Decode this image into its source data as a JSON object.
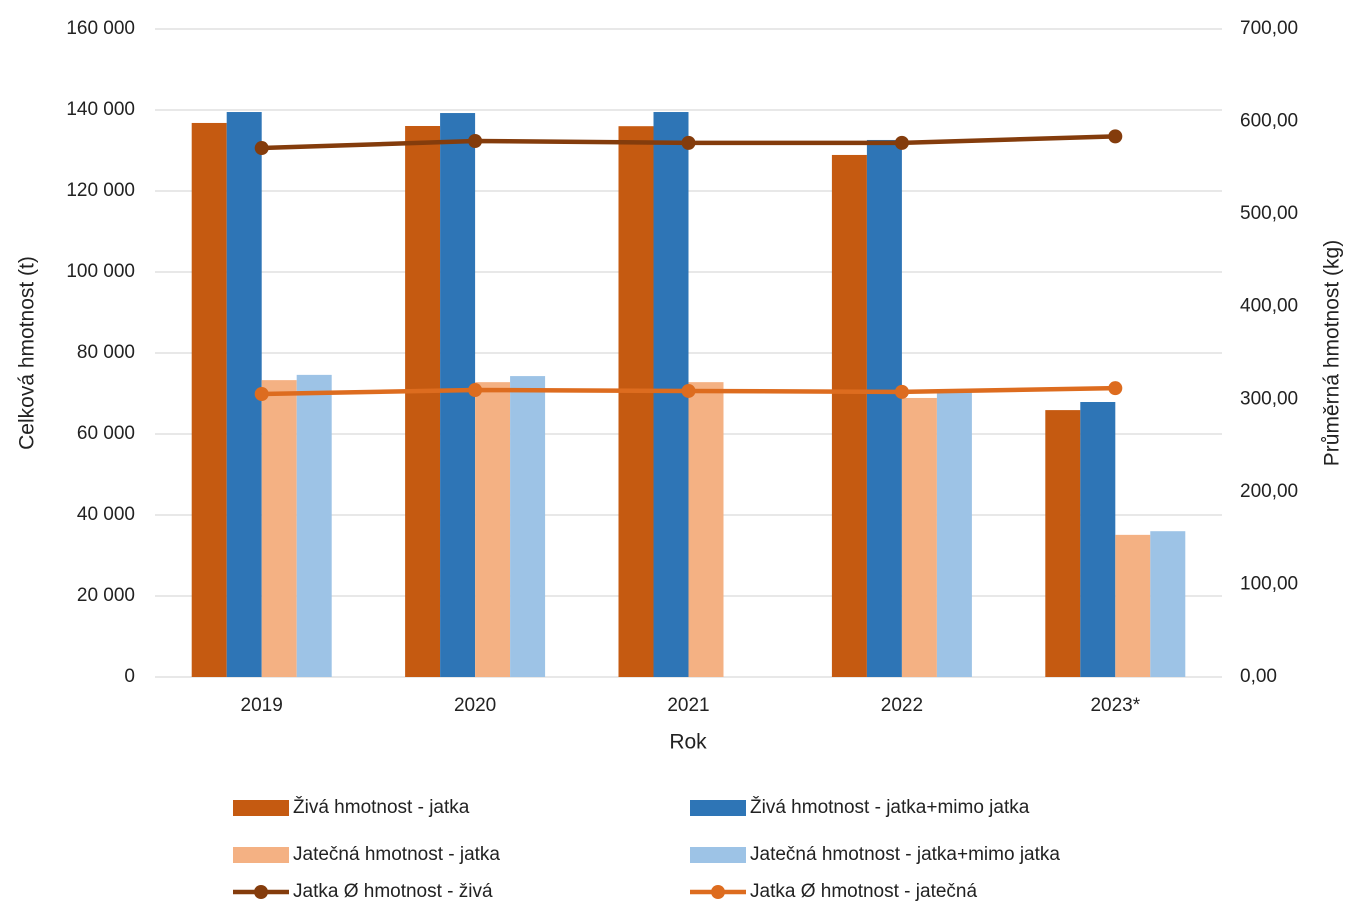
{
  "chart_data": {
    "type": "bar",
    "x_label": "Rok",
    "y_label": "Celková hmotnost (t)",
    "y2_label": "Průměrná hmotnost (kg)",
    "categories": [
      "2019",
      "2020",
      "2021",
      "2022",
      "2023*"
    ],
    "series": [
      {
        "name": "Živá hmotnost - jatka",
        "color": "#c55a11",
        "values": [
          136800,
          136050,
          136000,
          128900,
          65900
        ]
      },
      {
        "name": "Živá hmotnost - jatka+mimo jatka",
        "color": "#2e75b6",
        "values": [
          139500,
          139250,
          139500,
          132600,
          67900
        ]
      },
      {
        "name": "Jatečná hmotnost - jatka",
        "color": "#f4b183",
        "values": [
          73300,
          72800,
          72800,
          68900,
          35100
        ]
      },
      {
        "name": "Jatečná hmotnost - jatka+mimo jatka",
        "color": "#9dc3e6",
        "values": [
          74600,
          74300,
          null,
          70300,
          36000
        ]
      },
      {
        "name": "Jatka Ø hmotnost - živá",
        "color": "#843c0c",
        "type": "line",
        "axis": "y2",
        "values": [
          571.4,
          579,
          577,
          577,
          584
        ]
      },
      {
        "name": "Jatka Ø  hmotnost - jatečná",
        "color": "#dd6c1f",
        "type": "line",
        "axis": "y2",
        "values": [
          305.7,
          310,
          309,
          308,
          312
        ]
      }
    ],
    "ylim": [
      0,
      160000
    ],
    "yticks": [
      0,
      {
        "value": 20000,
        "label": "20 000"
      },
      {
        "value": 40000,
        "label": "40 000"
      },
      {
        "value": 60000,
        "label": "60 000"
      },
      {
        "value": 80000,
        "label": "80 000"
      },
      {
        "value": 100000,
        "label": "100 000"
      },
      {
        "value": 120000,
        "label": "120 000"
      },
      {
        "value": 140000,
        "label": "140 000"
      },
      {
        "value": 160000,
        "label": "160 000"
      }
    ],
    "y2lim": [
      0,
      700
    ],
    "y2ticks": [
      {
        "value": 0,
        "label": "0,00"
      },
      {
        "value": 100,
        "label": "100,00"
      },
      {
        "value": 200,
        "label": "200,00"
      },
      {
        "value": 300,
        "label": "300,00"
      },
      {
        "value": 400,
        "label": "400,00"
      },
      {
        "value": 500,
        "label": "500,00"
      },
      {
        "value": 600,
        "label": "600,00"
      },
      {
        "value": 700,
        "label": "700,00"
      }
    ],
    "grid": true,
    "legend": "bottom"
  }
}
